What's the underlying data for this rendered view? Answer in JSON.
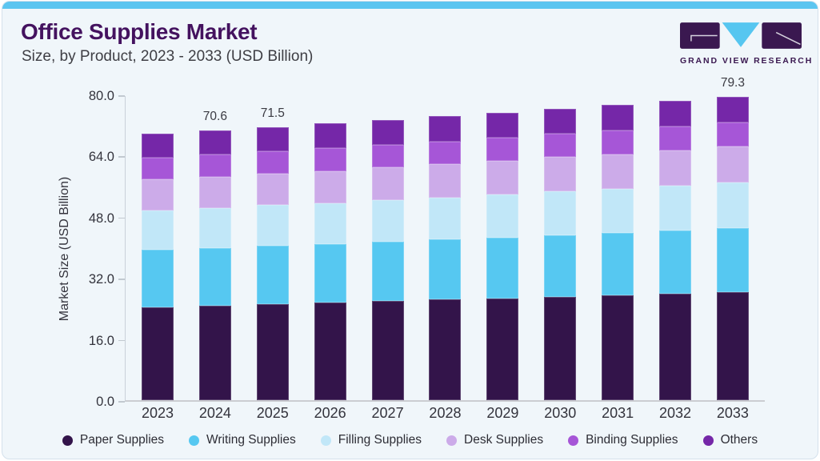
{
  "header": {
    "title": "Office Supplies Market",
    "subtitle": "Size, by Product, 2023 - 2033 (USD Billion)"
  },
  "logo": {
    "text": "GRAND VIEW RESEARCH"
  },
  "chart_data": {
    "type": "bar",
    "stacked": true,
    "title": "Office Supplies Market Size, by Product, 2023 - 2033 (USD Billion)",
    "xlabel": "",
    "ylabel": "Market Size (USD Billion)",
    "ylim": [
      0,
      80
    ],
    "yticks": [
      0,
      16,
      32,
      48,
      64,
      80
    ],
    "ytick_labels": [
      "0.0",
      "16.0",
      "32.0",
      "48.0",
      "64.0",
      "80.0"
    ],
    "grid": false,
    "legend_position": "bottom",
    "categories": [
      "2023",
      "2024",
      "2025",
      "2026",
      "2027",
      "2028",
      "2029",
      "2030",
      "2031",
      "2032",
      "2033"
    ],
    "series": [
      {
        "name": "Paper Supplies",
        "color": "#33144a",
        "values": [
          24.4,
          24.8,
          25.2,
          25.5,
          25.9,
          26.3,
          26.7,
          27.1,
          27.5,
          27.9,
          28.3
        ]
      },
      {
        "name": "Writing Supplies",
        "color": "#56c8f1",
        "values": [
          15.0,
          15.1,
          15.2,
          15.4,
          15.5,
          15.7,
          15.9,
          16.1,
          16.2,
          16.5,
          16.7
        ]
      },
      {
        "name": "Filling Supplies",
        "color": "#c1e7f8",
        "values": [
          10.3,
          10.4,
          10.6,
          10.7,
          10.9,
          11.0,
          11.2,
          11.4,
          11.5,
          11.7,
          12.0
        ]
      },
      {
        "name": "Desk Supplies",
        "color": "#ccabe9",
        "values": [
          8.1,
          8.2,
          8.3,
          8.4,
          8.6,
          8.7,
          8.8,
          9.0,
          9.1,
          9.3,
          9.4
        ]
      },
      {
        "name": "Binding Supplies",
        "color": "#a656d7",
        "values": [
          5.7,
          5.8,
          5.8,
          5.9,
          6.0,
          6.0,
          6.1,
          6.1,
          6.2,
          6.2,
          6.2
        ]
      },
      {
        "name": "Others",
        "color": "#7527a8",
        "values": [
          6.3,
          6.3,
          6.4,
          6.5,
          6.5,
          6.6,
          6.6,
          6.6,
          6.7,
          6.7,
          6.7
        ]
      }
    ],
    "totals": [
      69.8,
      70.6,
      71.5,
      72.4,
      73.4,
      74.3,
      75.3,
      76.3,
      77.2,
      78.3,
      79.3
    ],
    "bar_labels": [
      "",
      "70.6",
      "71.5",
      "",
      "",
      "",
      "",
      "",
      "",
      "",
      "79.3"
    ]
  },
  "colors": {
    "accent_strip": "#5bc5f0",
    "card_bg": "#f0f6fa",
    "card_border": "#d4e1ec",
    "title_text": "#44125f",
    "axis_text": "#33333c",
    "logo_purple": "#3a1850",
    "logo_blue": "#56c6f0"
  }
}
